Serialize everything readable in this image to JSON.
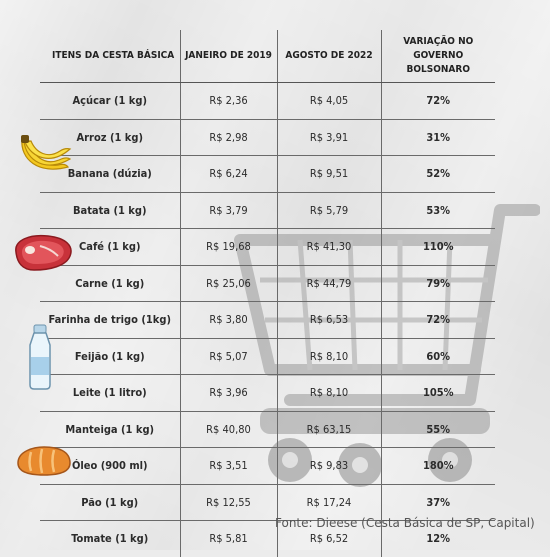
{
  "table": {
    "headers": [
      "ITENS DA CESTA BÁSICA",
      "JANEIRO DE 2019",
      "AGOSTO DE 2022",
      "VARIAÇÃO NO GOVERNO BOLSONARO"
    ],
    "rows": [
      {
        "item": "Açúcar (1 kg)",
        "jan2019": "R$ 2,36",
        "ago2022": "R$ 4,05",
        "variacao": "72%"
      },
      {
        "item": "Arroz (1 kg)",
        "jan2019": "R$ 2,98",
        "ago2022": "R$ 3,91",
        "variacao": "31%"
      },
      {
        "item": "Banana  (dúzia)",
        "jan2019": "R$ 6,24",
        "ago2022": "R$ 9,51",
        "variacao": "52%"
      },
      {
        "item": "Batata (1 kg)",
        "jan2019": "R$ 3,79",
        "ago2022": "R$ 5,79",
        "variacao": "53%"
      },
      {
        "item": "Café (1 kg)",
        "jan2019": "R$ 19,68",
        "ago2022": "R$ 41,30",
        "variacao": "110%"
      },
      {
        "item": "Carne (1 kg)",
        "jan2019": "R$ 25,06",
        "ago2022": "R$ 44,79",
        "variacao": "79%"
      },
      {
        "item": "Farinha de trigo (1kg)",
        "jan2019": "R$ 3,80",
        "ago2022": "R$ 6,53",
        "variacao": "72%"
      },
      {
        "item": "Feijão (1 kg)",
        "jan2019": "R$ 5,07",
        "ago2022": "R$ 8,10",
        "variacao": "60%"
      },
      {
        "item": "Leite (1 litro)",
        "jan2019": "R$ 3,96",
        "ago2022": "R$ 8,10",
        "variacao": "105%"
      },
      {
        "item": "Manteiga (1 kg)",
        "jan2019": "R$ 40,80",
        "ago2022": "R$ 63,15",
        "variacao": "55%"
      },
      {
        "item": "Óleo (900 ml)",
        "jan2019": "R$ 3,51",
        "ago2022": "R$ 9,83",
        "variacao": "180%"
      },
      {
        "item": "Pão (1 kg)",
        "jan2019": "R$ 12,55",
        "ago2022": "R$ 17,24",
        "variacao": "37%"
      },
      {
        "item": "Tomate (1 kg)",
        "jan2019": "R$ 5,81",
        "ago2022": "R$ 6,52",
        "variacao": "12%"
      }
    ]
  },
  "source": "Fonte: Dieese (Cesta Básica de SP, Capital)",
  "icons": [
    "shopping-cart-icon",
    "banana-icon",
    "steak-icon",
    "milk-bottle-icon",
    "bread-icon"
  ],
  "colors": {
    "variation_text": "#b5122c",
    "background": "#eaeaea",
    "grid_lines": "#6a6a6a"
  }
}
